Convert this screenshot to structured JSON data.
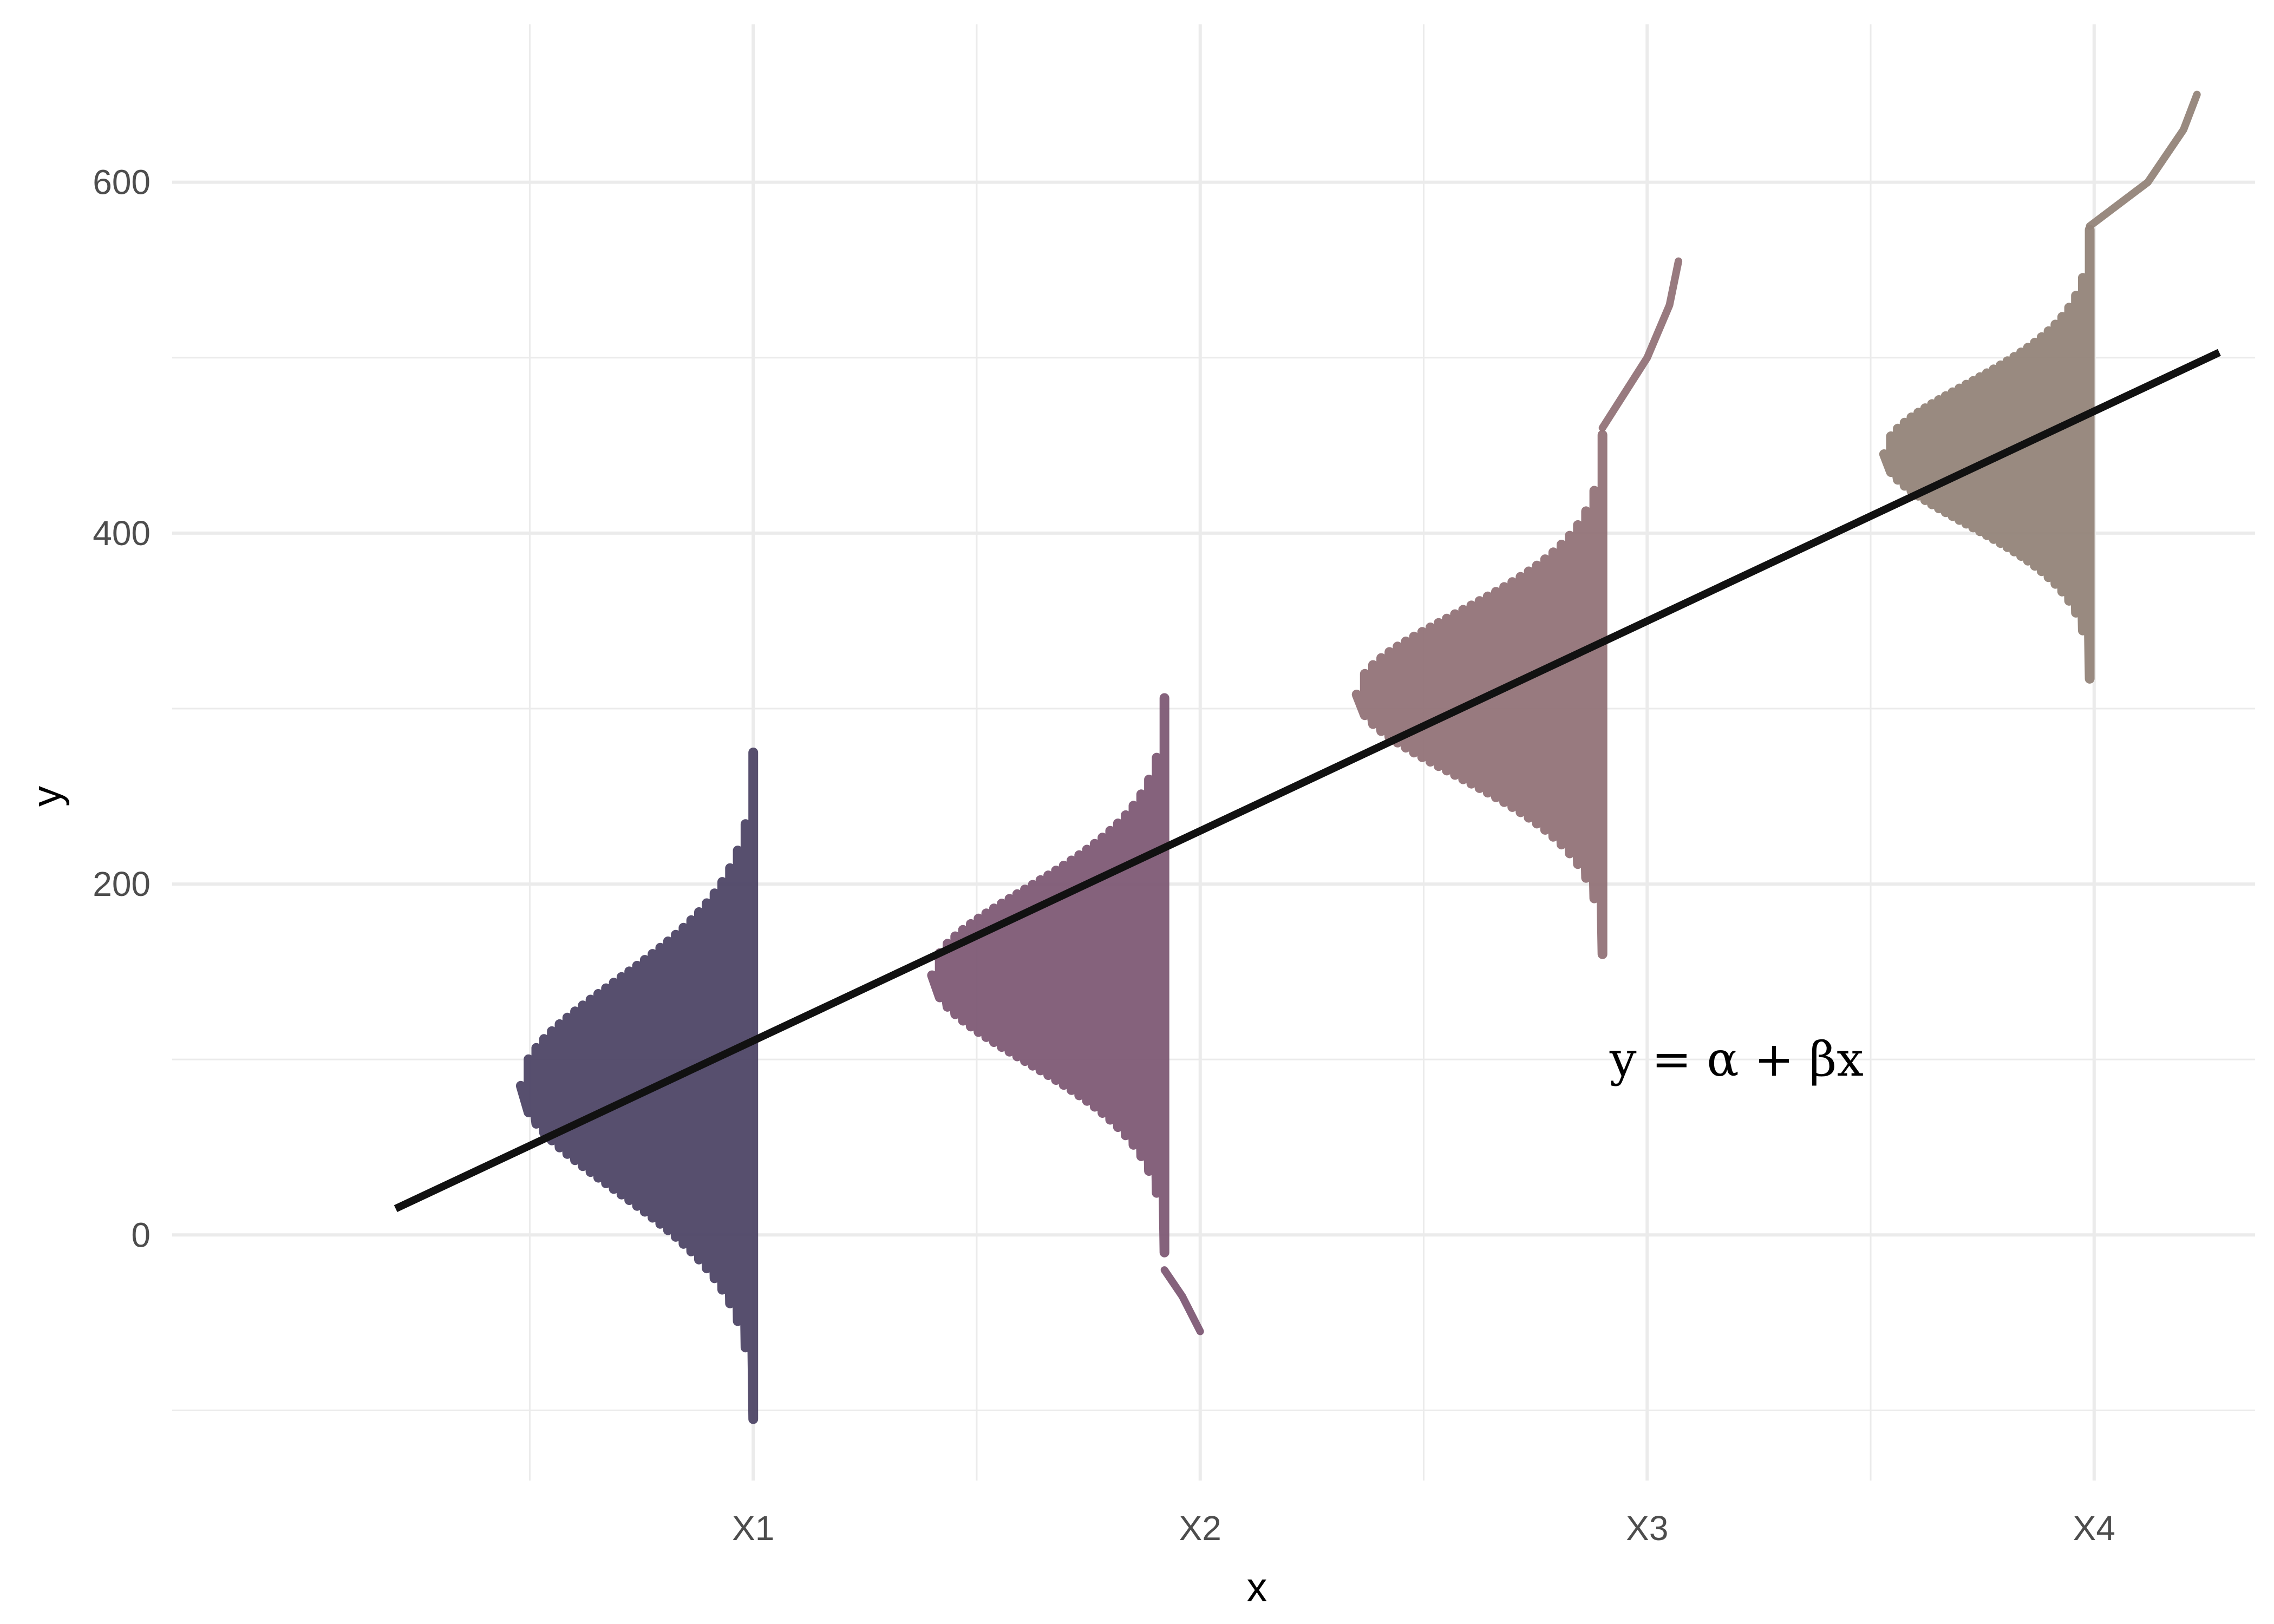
{
  "chart_data": {
    "type": "line",
    "title": "",
    "xlabel": "x",
    "ylabel": "y",
    "categories": [
      "X1",
      "X2",
      "X3",
      "X4"
    ],
    "x_positions": [
      1,
      2,
      3,
      4
    ],
    "xlim": [
      -0.3,
      4.36
    ],
    "ylim": [
      -140,
      690
    ],
    "y_ticks": [
      0,
      200,
      400,
      600
    ],
    "y_tick_labels": [
      "0",
      "200",
      "400",
      "600"
    ],
    "grid": true,
    "regression_line": {
      "x": [
        0.2,
        4.28
      ],
      "y": [
        15,
        503
      ],
      "color": "#111111",
      "label": "y = α + βx"
    },
    "annotation": {
      "text": "y = α + βx",
      "x": 3.2,
      "y": 100
    },
    "distributions": [
      {
        "name": "X1",
        "x_center": 1,
        "mean": 85,
        "half_range": 190,
        "width_x": 0.52,
        "tail": null,
        "color": "#4e4666"
      },
      {
        "name": "X2",
        "x_center": 1.92,
        "mean": 148,
        "half_range": 158,
        "width_x": 0.52,
        "tail": {
          "x": [
            1.92,
            1.96,
            2.0
          ],
          "y": [
            -20,
            -35,
            -55
          ]
        },
        "color": "#7e5a75"
      },
      {
        "name": "X3",
        "x_center": 2.9,
        "mean": 308,
        "half_range": 148,
        "width_x": 0.55,
        "tail": {
          "x": [
            2.9,
            3.0,
            3.05,
            3.07
          ],
          "y": [
            460,
            500,
            530,
            555
          ]
        },
        "color": "#927378"
      },
      {
        "name": "X4",
        "x_center": 3.99,
        "mean": 445,
        "half_range": 128,
        "width_x": 0.46,
        "tail": {
          "x": [
            3.99,
            4.12,
            4.2,
            4.23
          ],
          "y": [
            575,
            600,
            630,
            650
          ]
        },
        "color": "#948479"
      }
    ]
  }
}
